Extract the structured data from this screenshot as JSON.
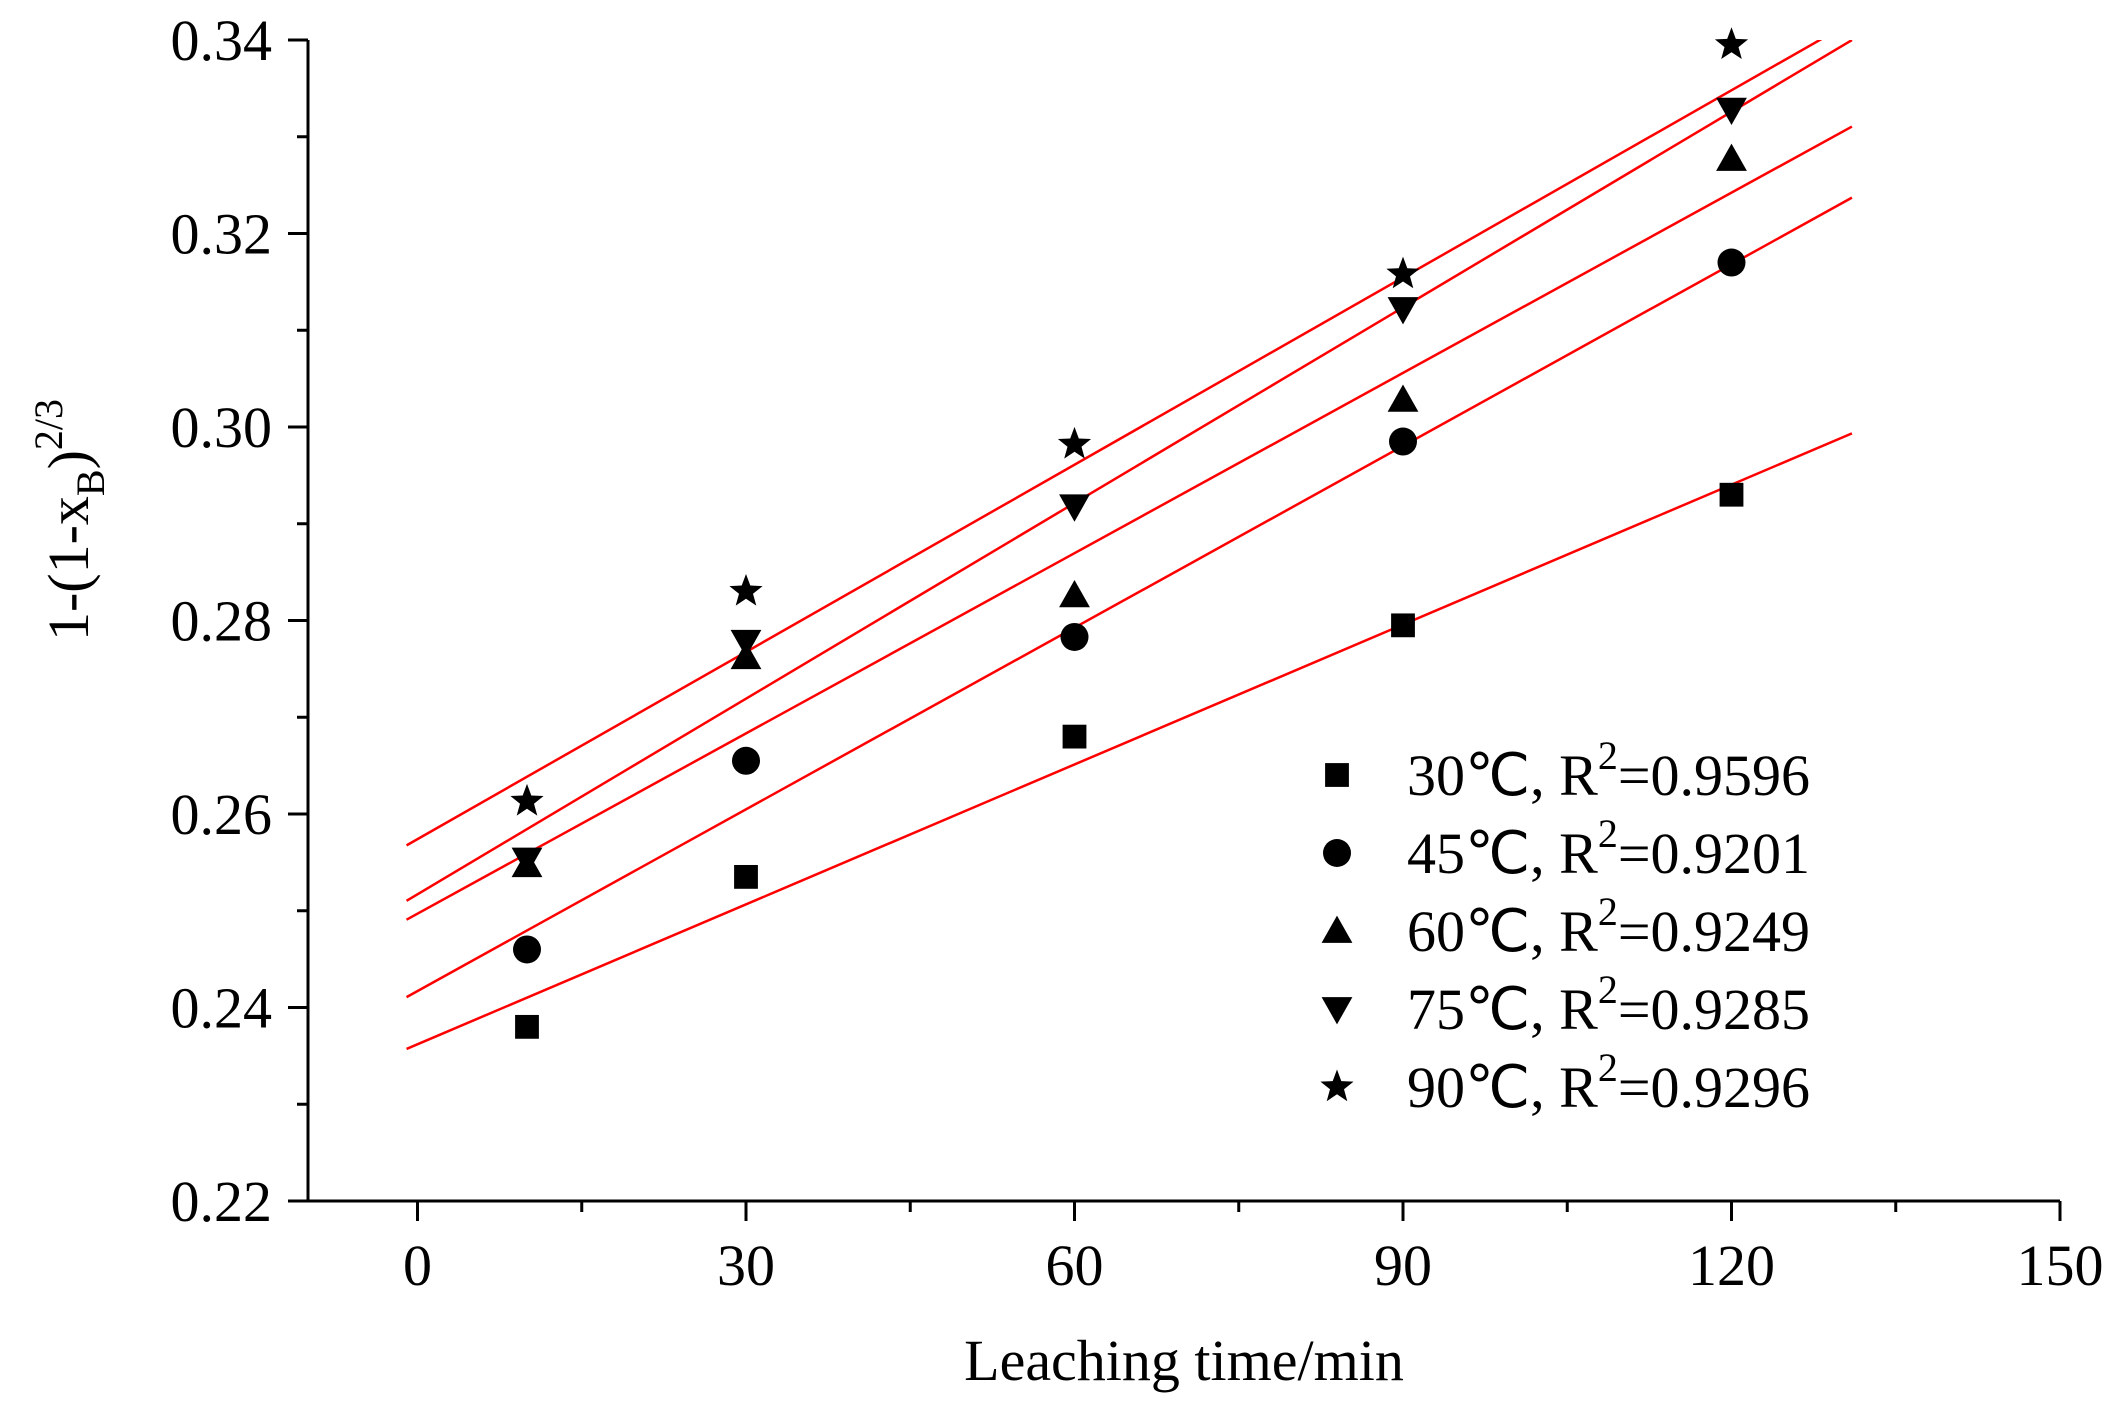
{
  "chart_data": {
    "type": "scatter",
    "title": "",
    "xlabel": "Leaching time/min",
    "ylabel": {
      "prefix": "1-(1-x",
      "subscript": "B",
      "suffix": ")",
      "superscript": "2/3"
    },
    "xlim": [
      -10,
      150
    ],
    "ylim": [
      0.22,
      0.34
    ],
    "x_ticks": [
      0,
      30,
      60,
      90,
      120,
      150
    ],
    "x_tick_labels": [
      "0",
      "30",
      "60",
      "90",
      "120",
      "150"
    ],
    "y_ticks": [
      0.22,
      0.24,
      0.26,
      0.28,
      0.3,
      0.32,
      0.34
    ],
    "y_tick_labels": [
      "0.22",
      "0.24",
      "0.26",
      "0.28",
      "0.30",
      "0.32",
      "0.34"
    ],
    "x": [
      10,
      30,
      60,
      90,
      120
    ],
    "series": [
      {
        "name": "30℃",
        "temp_label": "30℃, R",
        "r2_sup": "2",
        "r2_value": "=0.9596",
        "marker": "square",
        "values": [
          0.238,
          0.2535,
          0.268,
          0.2795,
          0.293
        ],
        "fit": {
          "intercept": 0.2362,
          "slope": 0.000482
        }
      },
      {
        "name": "45℃",
        "temp_label": "45℃, R",
        "r2_sup": "2",
        "r2_value": "=0.9201",
        "marker": "circle",
        "values": [
          0.246,
          0.2655,
          0.2783,
          0.2985,
          0.317
        ],
        "fit": {
          "intercept": 0.2417,
          "slope": 0.000626
        }
      },
      {
        "name": "60℃",
        "temp_label": "60℃, R",
        "r2_sup": "2",
        "r2_value": "=0.9249",
        "marker": "triangle-up",
        "values": [
          0.2547,
          0.2762,
          0.2826,
          0.3028,
          0.3277
        ],
        "fit": {
          "intercept": 0.2497,
          "slope": 0.000621
        }
      },
      {
        "name": "75℃",
        "temp_label": "75℃, R",
        "r2_sup": "2",
        "r2_value": "=0.9285",
        "marker": "triangle-down",
        "values": [
          0.2553,
          0.2778,
          0.2918,
          0.3122,
          0.3328
        ],
        "fit": {
          "intercept": 0.2517,
          "slope": 0.000674
        }
      },
      {
        "name": "90℃",
        "temp_label": "90℃, R",
        "r2_sup": "2",
        "r2_value": "=0.9296",
        "marker": "star",
        "values": [
          0.2613,
          0.283,
          0.2982,
          0.3158,
          0.3395
        ],
        "fit": {
          "intercept": 0.2574,
          "slope": 0.000645
        }
      }
    ],
    "fit_line_color": "#ff0000",
    "marker_color": "#000000",
    "legend_position": "bottom-right",
    "grid": false
  }
}
